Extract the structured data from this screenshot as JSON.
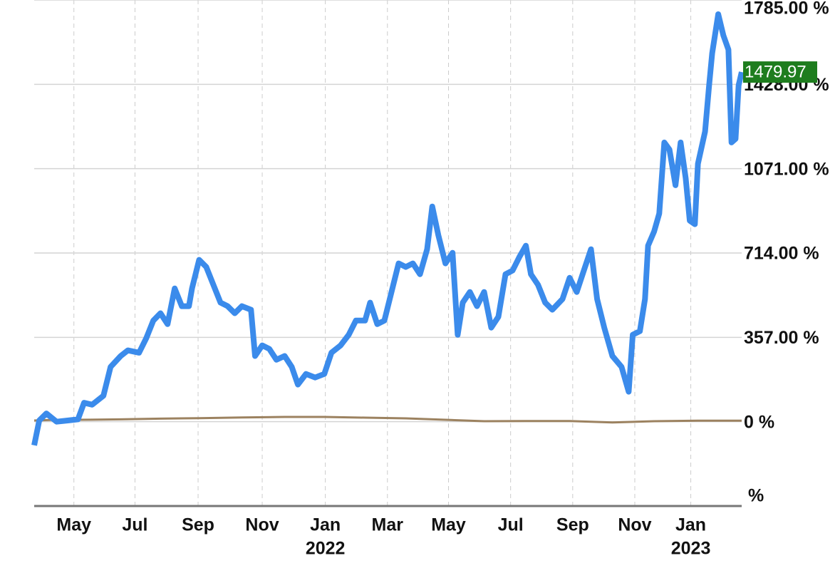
{
  "chart_data": {
    "type": "line",
    "xlim": [
      0,
      695
    ],
    "ylim": [
      -357,
      1785
    ],
    "yticks": [
      {
        "value": -357,
        "label": "%"
      },
      {
        "value": 0,
        "label": "0 %"
      },
      {
        "value": 357,
        "label": "357.00 %"
      },
      {
        "value": 714,
        "label": "714.00 %"
      },
      {
        "value": 1071,
        "label": "1071.00 %"
      },
      {
        "value": 1428,
        "label": "1428.00 %"
      },
      {
        "value": 1785,
        "label": "1785.00 %"
      }
    ],
    "xticks": [
      {
        "value": 39,
        "label": "May"
      },
      {
        "value": 99,
        "label": "Jul"
      },
      {
        "value": 161,
        "label": "Sep"
      },
      {
        "value": 224,
        "label": "Nov"
      },
      {
        "value": 286,
        "label": "Jan"
      },
      {
        "value": 347,
        "label": "Mar"
      },
      {
        "value": 407,
        "label": "May"
      },
      {
        "value": 468,
        "label": "Jul"
      },
      {
        "value": 529,
        "label": "Sep"
      },
      {
        "value": 590,
        "label": "Nov"
      },
      {
        "value": 645,
        "label": "Jan"
      }
    ],
    "year_labels": [
      {
        "value": 286,
        "label": "2022"
      },
      {
        "value": 645,
        "label": "2023"
      }
    ],
    "grid": true,
    "current_value": 1479.97,
    "current_color": "#1e7d1e",
    "series": [
      {
        "color": "#3b8beb",
        "width": 8,
        "x": [
          0,
          5,
          12,
          22,
          33,
          43,
          49,
          57,
          68,
          75,
          85,
          92,
          103,
          110,
          117,
          124,
          131,
          138,
          145,
          152,
          155,
          162,
          169,
          176,
          183,
          190,
          197,
          204,
          213,
          217,
          224,
          231,
          238,
          246,
          253,
          259,
          267,
          276,
          285,
          292,
          301,
          309,
          316,
          325,
          330,
          337,
          344,
          351,
          358,
          365,
          372,
          379,
          386,
          391,
          397,
          404,
          411,
          416,
          421,
          428,
          435,
          442,
          449,
          456,
          463,
          470,
          477,
          483,
          488,
          495,
          502,
          509,
          519,
          526,
          533,
          540,
          547,
          553,
          560,
          568,
          577,
          584,
          588,
          595,
          600,
          603,
          609,
          614,
          619,
          624,
          630,
          635,
          640,
          644,
          649,
          652,
          659,
          663,
          666,
          672,
          677,
          682,
          685,
          689,
          692,
          695
        ],
        "values": [
          -100,
          5,
          35,
          0,
          5,
          10,
          80,
          72,
          110,
          232,
          278,
          302,
          292,
          353,
          428,
          459,
          413,
          564,
          489,
          489,
          564,
          685,
          655,
          579,
          504,
          489,
          459,
          489,
          474,
          278,
          323,
          308,
          262,
          278,
          232,
          157,
          202,
          187,
          202,
          292,
          323,
          368,
          428,
          428,
          504,
          413,
          428,
          549,
          670,
          655,
          670,
          624,
          730,
          911,
          790,
          670,
          715,
          368,
          504,
          549,
          489,
          549,
          398,
          444,
          624,
          640,
          700,
          745,
          624,
          579,
          504,
          474,
          519,
          609,
          549,
          640,
          730,
          519,
          398,
          278,
          232,
          127,
          368,
          383,
          519,
          745,
          805,
          881,
          1182,
          1152,
          1001,
          1182,
          1031,
          851,
          836,
          1092,
          1228,
          1424,
          1560,
          1725,
          1635,
          1575,
          1182,
          1197,
          1424,
          1479.97
        ]
      },
      {
        "color": "#9c8260",
        "width": 3,
        "x": [
          0,
          22,
          43,
          85,
          124,
          162,
          204,
          246,
          285,
          325,
          365,
          404,
          442,
          483,
          526,
          568,
          609,
          652,
          695
        ],
        "values": [
          5,
          8,
          8,
          10,
          13,
          15,
          18,
          20,
          20,
          17,
          14,
          8,
          2,
          3,
          3,
          -3,
          2,
          4,
          4
        ]
      }
    ]
  }
}
